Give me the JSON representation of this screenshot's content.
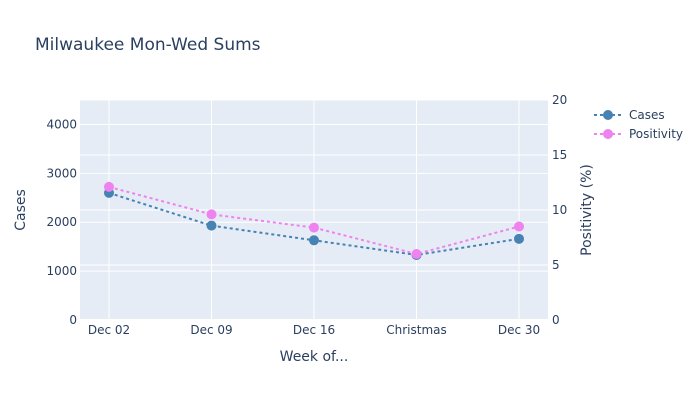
{
  "chart_data": {
    "type": "line",
    "title": "Milwaukee Mon-Wed Sums",
    "xlabel": "Week of...",
    "ylabel": "Cases",
    "y2label": "Positivity (%)",
    "categories": [
      "Dec 02",
      "Dec 09",
      "Dec 16",
      "Christmas",
      "Dec 30"
    ],
    "ylim": [
      0,
      4500
    ],
    "y2lim": [
      0,
      20
    ],
    "yticks": [
      0,
      1000,
      2000,
      3000,
      4000
    ],
    "y2ticks": [
      0,
      5,
      10,
      15,
      20
    ],
    "grid": true,
    "legend_position": "top-right",
    "series": [
      {
        "name": "Cases",
        "axis": "y",
        "color": "#4682b4",
        "line_style": "dotted",
        "marker": "circle",
        "values": [
          2600,
          1930,
          1630,
          1330,
          1660
        ]
      },
      {
        "name": "Positivity",
        "axis": "y2",
        "color": "#ee82ee",
        "line_style": "dotted",
        "marker": "circle",
        "values": [
          12.1,
          9.6,
          8.4,
          6.0,
          8.5
        ]
      }
    ]
  }
}
